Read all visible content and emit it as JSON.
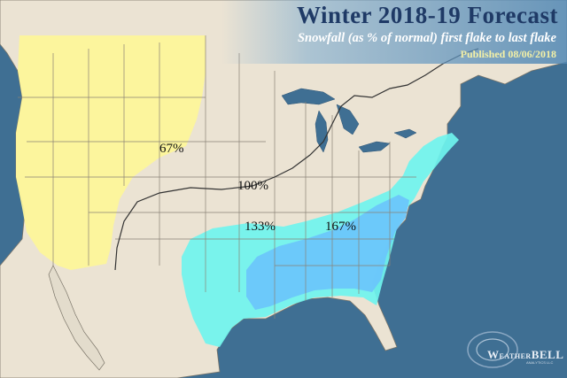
{
  "title": "Winter 2018-19 Forecast",
  "subtitle": "Snowfall (as % of normal) first flake to last flake",
  "published": "Published 08/06/2018",
  "labels": {
    "west": "67%",
    "central": "100%",
    "south_central": "133%",
    "southeast": "167%"
  },
  "logo": {
    "name_small1": "W",
    "name_rest1": "EATHER",
    "name_bold": "BELL",
    "tagline": "ANALYTICS LLC"
  },
  "colors": {
    "ocean": "#3f6f93",
    "land": "#ebe3d3",
    "canada_mexico": "#e3dccc",
    "zone_67": "#fdf59a",
    "zone_133": "#6ff4ee",
    "zone_167": "#6cc6fb",
    "boundary": "#333333"
  }
}
